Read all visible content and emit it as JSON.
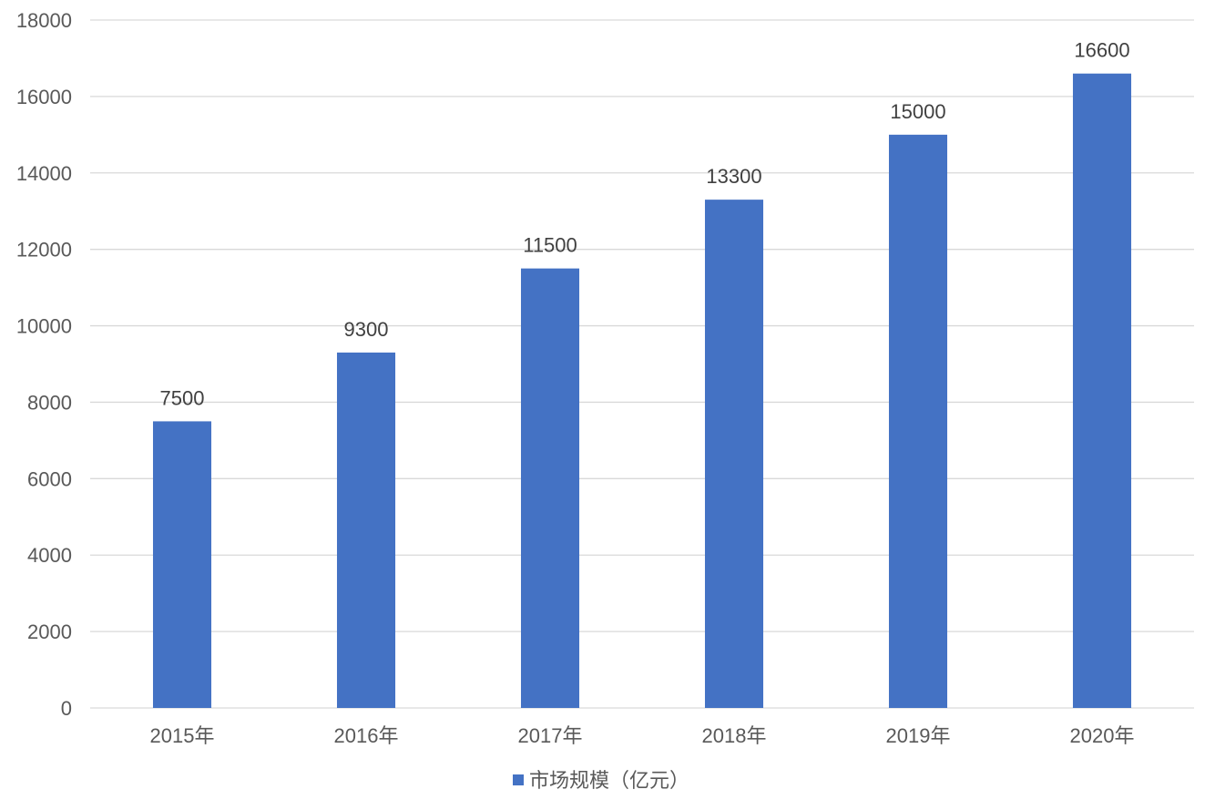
{
  "chart_data": {
    "type": "bar",
    "categories": [
      "2015年",
      "2016年",
      "2017年",
      "2018年",
      "2019年",
      "2020年"
    ],
    "series": [
      {
        "name": "市场规模（亿元）",
        "values": [
          7500,
          9300,
          11500,
          13300,
          15000,
          16600
        ],
        "color": "#4472c4"
      }
    ],
    "ylim": [
      0,
      18000
    ],
    "yticks": [
      0,
      2000,
      4000,
      6000,
      8000,
      10000,
      12000,
      14000,
      16000,
      18000
    ],
    "grid": true,
    "legend_position": "bottom",
    "data_labels": true,
    "colors": {
      "bar": "#4472c4",
      "grid": "#d9d9d9",
      "axis": "#d9d9d9",
      "text": "#595959",
      "data_label": "#404040"
    }
  }
}
